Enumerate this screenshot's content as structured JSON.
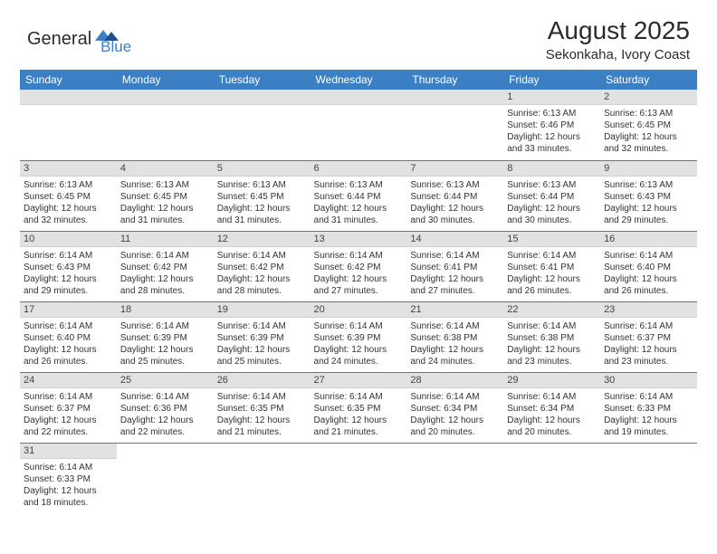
{
  "logo": {
    "general": "General",
    "blue": "Blue"
  },
  "header": {
    "month": "August 2025",
    "location": "Sekonkaha, Ivory Coast"
  },
  "colors": {
    "header_bg": "#3b7fc4",
    "header_fg": "#ffffff",
    "daynum_bg": "#e2e2e2",
    "row_divider": "#3b7fc4",
    "text": "#333333"
  },
  "weekdays": [
    "Sunday",
    "Monday",
    "Tuesday",
    "Wednesday",
    "Thursday",
    "Friday",
    "Saturday"
  ],
  "weeks": [
    [
      null,
      null,
      null,
      null,
      null,
      {
        "n": "1",
        "sr": "6:13 AM",
        "ss": "6:46 PM",
        "dl": "12 hours and 33 minutes."
      },
      {
        "n": "2",
        "sr": "6:13 AM",
        "ss": "6:45 PM",
        "dl": "12 hours and 32 minutes."
      }
    ],
    [
      {
        "n": "3",
        "sr": "6:13 AM",
        "ss": "6:45 PM",
        "dl": "12 hours and 32 minutes."
      },
      {
        "n": "4",
        "sr": "6:13 AM",
        "ss": "6:45 PM",
        "dl": "12 hours and 31 minutes."
      },
      {
        "n": "5",
        "sr": "6:13 AM",
        "ss": "6:45 PM",
        "dl": "12 hours and 31 minutes."
      },
      {
        "n": "6",
        "sr": "6:13 AM",
        "ss": "6:44 PM",
        "dl": "12 hours and 31 minutes."
      },
      {
        "n": "7",
        "sr": "6:13 AM",
        "ss": "6:44 PM",
        "dl": "12 hours and 30 minutes."
      },
      {
        "n": "8",
        "sr": "6:13 AM",
        "ss": "6:44 PM",
        "dl": "12 hours and 30 minutes."
      },
      {
        "n": "9",
        "sr": "6:13 AM",
        "ss": "6:43 PM",
        "dl": "12 hours and 29 minutes."
      }
    ],
    [
      {
        "n": "10",
        "sr": "6:14 AM",
        "ss": "6:43 PM",
        "dl": "12 hours and 29 minutes."
      },
      {
        "n": "11",
        "sr": "6:14 AM",
        "ss": "6:42 PM",
        "dl": "12 hours and 28 minutes."
      },
      {
        "n": "12",
        "sr": "6:14 AM",
        "ss": "6:42 PM",
        "dl": "12 hours and 28 minutes."
      },
      {
        "n": "13",
        "sr": "6:14 AM",
        "ss": "6:42 PM",
        "dl": "12 hours and 27 minutes."
      },
      {
        "n": "14",
        "sr": "6:14 AM",
        "ss": "6:41 PM",
        "dl": "12 hours and 27 minutes."
      },
      {
        "n": "15",
        "sr": "6:14 AM",
        "ss": "6:41 PM",
        "dl": "12 hours and 26 minutes."
      },
      {
        "n": "16",
        "sr": "6:14 AM",
        "ss": "6:40 PM",
        "dl": "12 hours and 26 minutes."
      }
    ],
    [
      {
        "n": "17",
        "sr": "6:14 AM",
        "ss": "6:40 PM",
        "dl": "12 hours and 26 minutes."
      },
      {
        "n": "18",
        "sr": "6:14 AM",
        "ss": "6:39 PM",
        "dl": "12 hours and 25 minutes."
      },
      {
        "n": "19",
        "sr": "6:14 AM",
        "ss": "6:39 PM",
        "dl": "12 hours and 25 minutes."
      },
      {
        "n": "20",
        "sr": "6:14 AM",
        "ss": "6:39 PM",
        "dl": "12 hours and 24 minutes."
      },
      {
        "n": "21",
        "sr": "6:14 AM",
        "ss": "6:38 PM",
        "dl": "12 hours and 24 minutes."
      },
      {
        "n": "22",
        "sr": "6:14 AM",
        "ss": "6:38 PM",
        "dl": "12 hours and 23 minutes."
      },
      {
        "n": "23",
        "sr": "6:14 AM",
        "ss": "6:37 PM",
        "dl": "12 hours and 23 minutes."
      }
    ],
    [
      {
        "n": "24",
        "sr": "6:14 AM",
        "ss": "6:37 PM",
        "dl": "12 hours and 22 minutes."
      },
      {
        "n": "25",
        "sr": "6:14 AM",
        "ss": "6:36 PM",
        "dl": "12 hours and 22 minutes."
      },
      {
        "n": "26",
        "sr": "6:14 AM",
        "ss": "6:35 PM",
        "dl": "12 hours and 21 minutes."
      },
      {
        "n": "27",
        "sr": "6:14 AM",
        "ss": "6:35 PM",
        "dl": "12 hours and 21 minutes."
      },
      {
        "n": "28",
        "sr": "6:14 AM",
        "ss": "6:34 PM",
        "dl": "12 hours and 20 minutes."
      },
      {
        "n": "29",
        "sr": "6:14 AM",
        "ss": "6:34 PM",
        "dl": "12 hours and 20 minutes."
      },
      {
        "n": "30",
        "sr": "6:14 AM",
        "ss": "6:33 PM",
        "dl": "12 hours and 19 minutes."
      }
    ],
    [
      {
        "n": "31",
        "sr": "6:14 AM",
        "ss": "6:33 PM",
        "dl": "12 hours and 18 minutes."
      },
      null,
      null,
      null,
      null,
      null,
      null
    ]
  ],
  "labels": {
    "sunrise": "Sunrise: ",
    "sunset": "Sunset: ",
    "daylight": "Daylight: "
  }
}
